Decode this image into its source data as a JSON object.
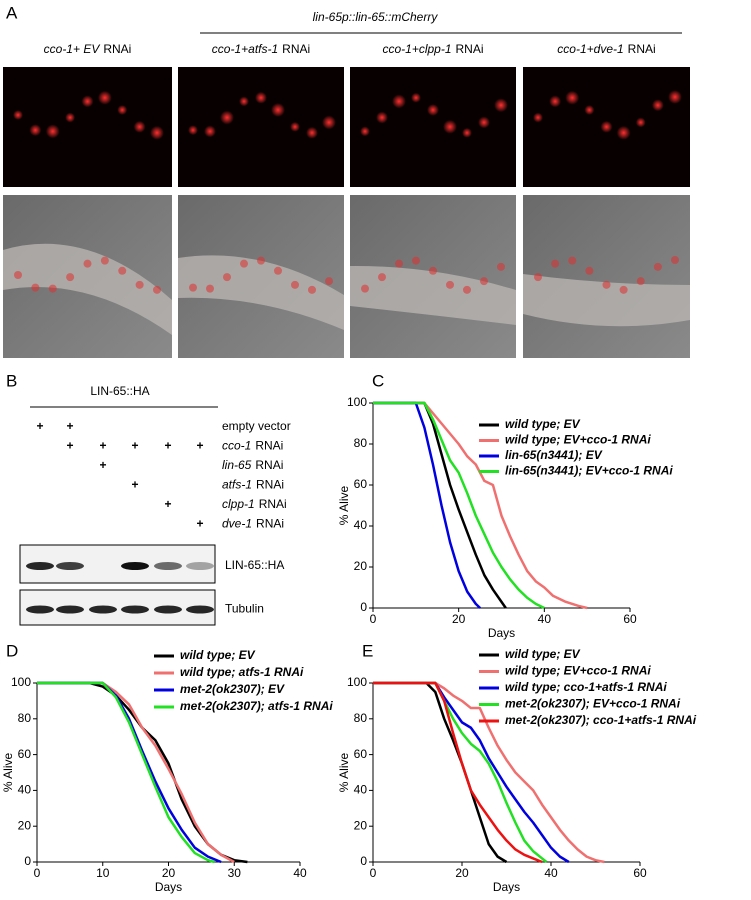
{
  "panel_a": {
    "label": "A",
    "title": "lin-65p::lin-65::mCherry",
    "columns": [
      {
        "gene": "cco-1+ EV",
        "suffix": "RNAi"
      },
      {
        "gene": "cco-1+atfs-1",
        "suffix": "RNAi"
      },
      {
        "gene": "cco-1+clpp-1",
        "suffix": "RNAi"
      },
      {
        "gene": "cco-1+dve-1",
        "suffix": "RNAi"
      }
    ]
  },
  "panel_b": {
    "label": "B",
    "strain": "LIN-65::HA",
    "rows": [
      {
        "gene": "empty vector",
        "marks": [
          "+",
          "+",
          null,
          null,
          null,
          null
        ]
      },
      {
        "gene": "cco-1",
        "suffix": "RNAi",
        "marks": [
          null,
          "+",
          "+",
          "+",
          "+",
          "+"
        ]
      },
      {
        "gene": "lin-65",
        "suffix": "RNAi",
        "marks": [
          null,
          null,
          "+",
          null,
          null,
          null
        ]
      },
      {
        "gene": "atfs-1",
        "suffix": "RNAi",
        "marks": [
          null,
          null,
          null,
          "+",
          null,
          null
        ]
      },
      {
        "gene": "clpp-1",
        "suffix": "RNAi",
        "marks": [
          null,
          null,
          null,
          null,
          "+",
          null
        ]
      },
      {
        "gene": "dve-1",
        "suffix": "RNAi",
        "marks": [
          null,
          null,
          null,
          null,
          null,
          "+"
        ]
      }
    ],
    "blots": [
      "LIN-65::HA",
      "Tubulin"
    ]
  },
  "chart_data": [
    {
      "type": "line",
      "panel": "C",
      "xlabel": "Days",
      "ylabel": "% Alive",
      "xlim": [
        0,
        60
      ],
      "xticks": [
        0,
        20,
        40,
        60
      ],
      "ylim": [
        0,
        100
      ],
      "yticks": [
        0,
        20,
        40,
        60,
        80,
        100
      ],
      "series": [
        {
          "name": "wild type; EV",
          "color": "#000000",
          "x": [
            0,
            12,
            14,
            16,
            18,
            20,
            22,
            24,
            26,
            28,
            30,
            31
          ],
          "values": [
            100,
            100,
            90,
            75,
            60,
            48,
            37,
            26,
            16,
            9,
            3,
            0
          ]
        },
        {
          "name": "wild type; EV+cco-1 RNAi",
          "color": "#f07070",
          "x": [
            0,
            12,
            14,
            16,
            18,
            20,
            22,
            24,
            26,
            28,
            30,
            32,
            34,
            36,
            38,
            40,
            42,
            45,
            48,
            50
          ],
          "values": [
            100,
            100,
            95,
            90,
            85,
            80,
            74,
            70,
            62,
            60,
            45,
            35,
            26,
            18,
            13,
            10,
            6,
            3,
            1,
            0
          ]
        },
        {
          "name": "lin-65(n3441); EV",
          "color": "#0000e0",
          "x": [
            0,
            10,
            12,
            14,
            16,
            18,
            20,
            22,
            24,
            25
          ],
          "values": [
            100,
            100,
            88,
            70,
            50,
            32,
            18,
            8,
            2,
            0
          ]
        },
        {
          "name": "lin-65(n3441); EV+cco-1 RNAi",
          "color": "#22e022",
          "x": [
            0,
            12,
            14,
            16,
            18,
            20,
            22,
            24,
            26,
            28,
            30,
            32,
            34,
            36,
            38,
            40
          ],
          "values": [
            100,
            100,
            92,
            82,
            72,
            66,
            56,
            45,
            36,
            27,
            20,
            14,
            9,
            5,
            2,
            0
          ]
        }
      ]
    },
    {
      "type": "line",
      "panel": "D",
      "xlabel": "Days",
      "ylabel": "% Alive",
      "xlim": [
        0,
        40
      ],
      "xticks": [
        0,
        10,
        20,
        30,
        40
      ],
      "ylim": [
        0,
        100
      ],
      "yticks": [
        0,
        20,
        40,
        60,
        80,
        100
      ],
      "series": [
        {
          "name": "wild type; EV",
          "color": "#000000",
          "x": [
            0,
            8,
            10,
            12,
            14,
            16,
            18,
            20,
            22,
            24,
            26,
            28,
            30,
            32
          ],
          "values": [
            100,
            100,
            98,
            93,
            85,
            75,
            68,
            55,
            35,
            20,
            10,
            4,
            1,
            0
          ]
        },
        {
          "name": "wild type; atfs-1 RNAi",
          "color": "#f07070",
          "x": [
            0,
            10,
            12,
            14,
            16,
            18,
            20,
            22,
            24,
            26,
            28,
            30
          ],
          "values": [
            100,
            100,
            95,
            88,
            75,
            65,
            52,
            38,
            22,
            10,
            4,
            0
          ]
        },
        {
          "name": "met-2(ok2307); EV",
          "color": "#0000e0",
          "x": [
            0,
            10,
            12,
            14,
            16,
            18,
            20,
            22,
            24,
            26,
            28
          ],
          "values": [
            100,
            100,
            93,
            80,
            62,
            45,
            30,
            18,
            8,
            3,
            0
          ]
        },
        {
          "name": "met-2(ok2307); atfs-1 RNAi",
          "color": "#22e022",
          "x": [
            0,
            10,
            12,
            14,
            16,
            18,
            20,
            22,
            24,
            26,
            27
          ],
          "values": [
            100,
            100,
            92,
            78,
            60,
            42,
            25,
            14,
            5,
            1,
            0
          ]
        }
      ]
    },
    {
      "type": "line",
      "panel": "E",
      "xlabel": "Days",
      "ylabel": "% Alive",
      "xlim": [
        0,
        60
      ],
      "xticks": [
        0,
        20,
        40,
        60
      ],
      "ylim": [
        0,
        100
      ],
      "yticks": [
        0,
        20,
        40,
        60,
        80,
        100
      ],
      "series": [
        {
          "name": "wild type; EV",
          "color": "#000000",
          "x": [
            0,
            12,
            14,
            16,
            18,
            20,
            22,
            24,
            26,
            28,
            30
          ],
          "values": [
            100,
            100,
            95,
            80,
            68,
            55,
            40,
            25,
            10,
            3,
            0
          ]
        },
        {
          "name": "wild type; EV+cco-1 RNAi",
          "color": "#f07070",
          "x": [
            0,
            14,
            16,
            18,
            20,
            22,
            24,
            26,
            28,
            30,
            32,
            34,
            36,
            38,
            40,
            42,
            44,
            46,
            48,
            50,
            52
          ],
          "values": [
            100,
            100,
            97,
            93,
            90,
            86,
            86,
            75,
            65,
            57,
            50,
            45,
            40,
            32,
            25,
            18,
            12,
            7,
            3,
            1,
            0
          ]
        },
        {
          "name": "wild type; cco-1+atfs-1 RNAi",
          "color": "#0000e0",
          "x": [
            0,
            14,
            16,
            18,
            20,
            22,
            24,
            26,
            28,
            30,
            32,
            34,
            36,
            38,
            40,
            42,
            44
          ],
          "values": [
            100,
            100,
            92,
            85,
            78,
            75,
            68,
            58,
            50,
            42,
            35,
            28,
            22,
            15,
            8,
            3,
            0
          ]
        },
        {
          "name": "met-2(ok2307); EV+cco-1 RNAi",
          "color": "#22e022",
          "x": [
            0,
            14,
            16,
            18,
            20,
            22,
            24,
            26,
            28,
            30,
            32,
            34,
            36,
            38,
            39
          ],
          "values": [
            100,
            100,
            90,
            80,
            72,
            66,
            62,
            55,
            45,
            33,
            22,
            12,
            6,
            2,
            0
          ]
        },
        {
          "name": "met-2(ok2307); cco-1+atfs-1 RNAi",
          "color": "#ee1111",
          "x": [
            0,
            14,
            16,
            18,
            20,
            22,
            24,
            26,
            28,
            30,
            32,
            34,
            36,
            38
          ],
          "values": [
            100,
            100,
            90,
            72,
            55,
            40,
            32,
            25,
            18,
            12,
            7,
            4,
            2,
            0
          ]
        }
      ]
    }
  ]
}
